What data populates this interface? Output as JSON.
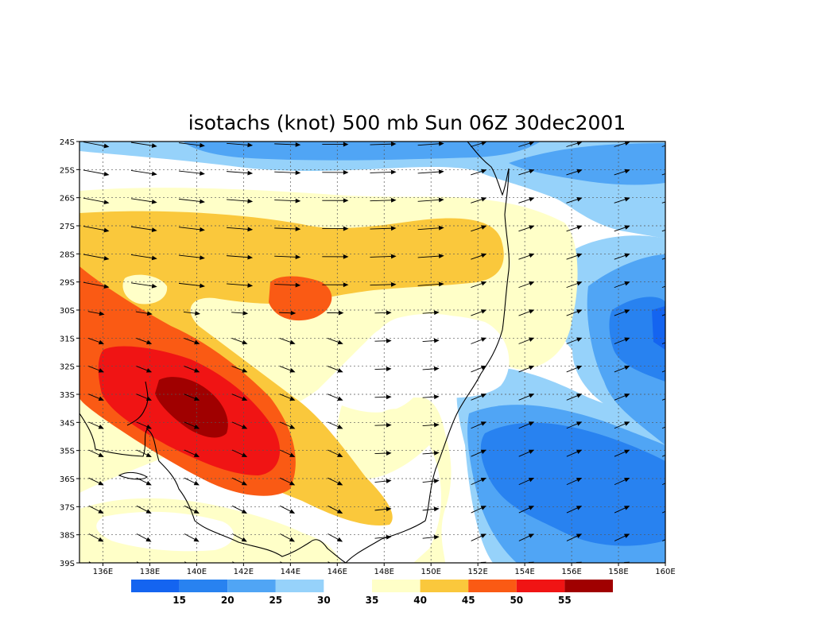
{
  "title": "isotachs (knot) 500 mb Sun 06Z 30dec2001",
  "map": {
    "lon_range": [
      135,
      160
    ],
    "lat_range": [
      24,
      39
    ],
    "lat_labels": [
      "24S",
      "25S",
      "26S",
      "27S",
      "28S",
      "29S",
      "30S",
      "31S",
      "32S",
      "33S",
      "34S",
      "35S",
      "36S",
      "37S",
      "38S",
      "39S"
    ],
    "lon_labels": [
      "136E",
      "138E",
      "140E",
      "142E",
      "144E",
      "146E",
      "148E",
      "150E",
      "152E",
      "154E",
      "156E",
      "158E",
      "160E"
    ],
    "palette": {
      "lt15": "#1464f0",
      "15-20": "#2882f0",
      "20-25": "#50a5f5",
      "25-30": "#96d2fa",
      "30-35": "#ffffff",
      "35-40": "#ffffc8",
      "40-45": "#fac83c",
      "45-50": "#fa5a14",
      "50-55": "#f01414",
      "gt55": "#a00000"
    }
  },
  "colorbar": {
    "colors": [
      "#1464f0",
      "#2882f0",
      "#50a5f5",
      "#96d2fa",
      "#ffffff",
      "#ffffc8",
      "#fac83c",
      "#fa5a14",
      "#f01414",
      "#a00000"
    ],
    "labels": [
      "15",
      "20",
      "25",
      "30",
      "35",
      "40",
      "45",
      "50",
      "55"
    ]
  }
}
